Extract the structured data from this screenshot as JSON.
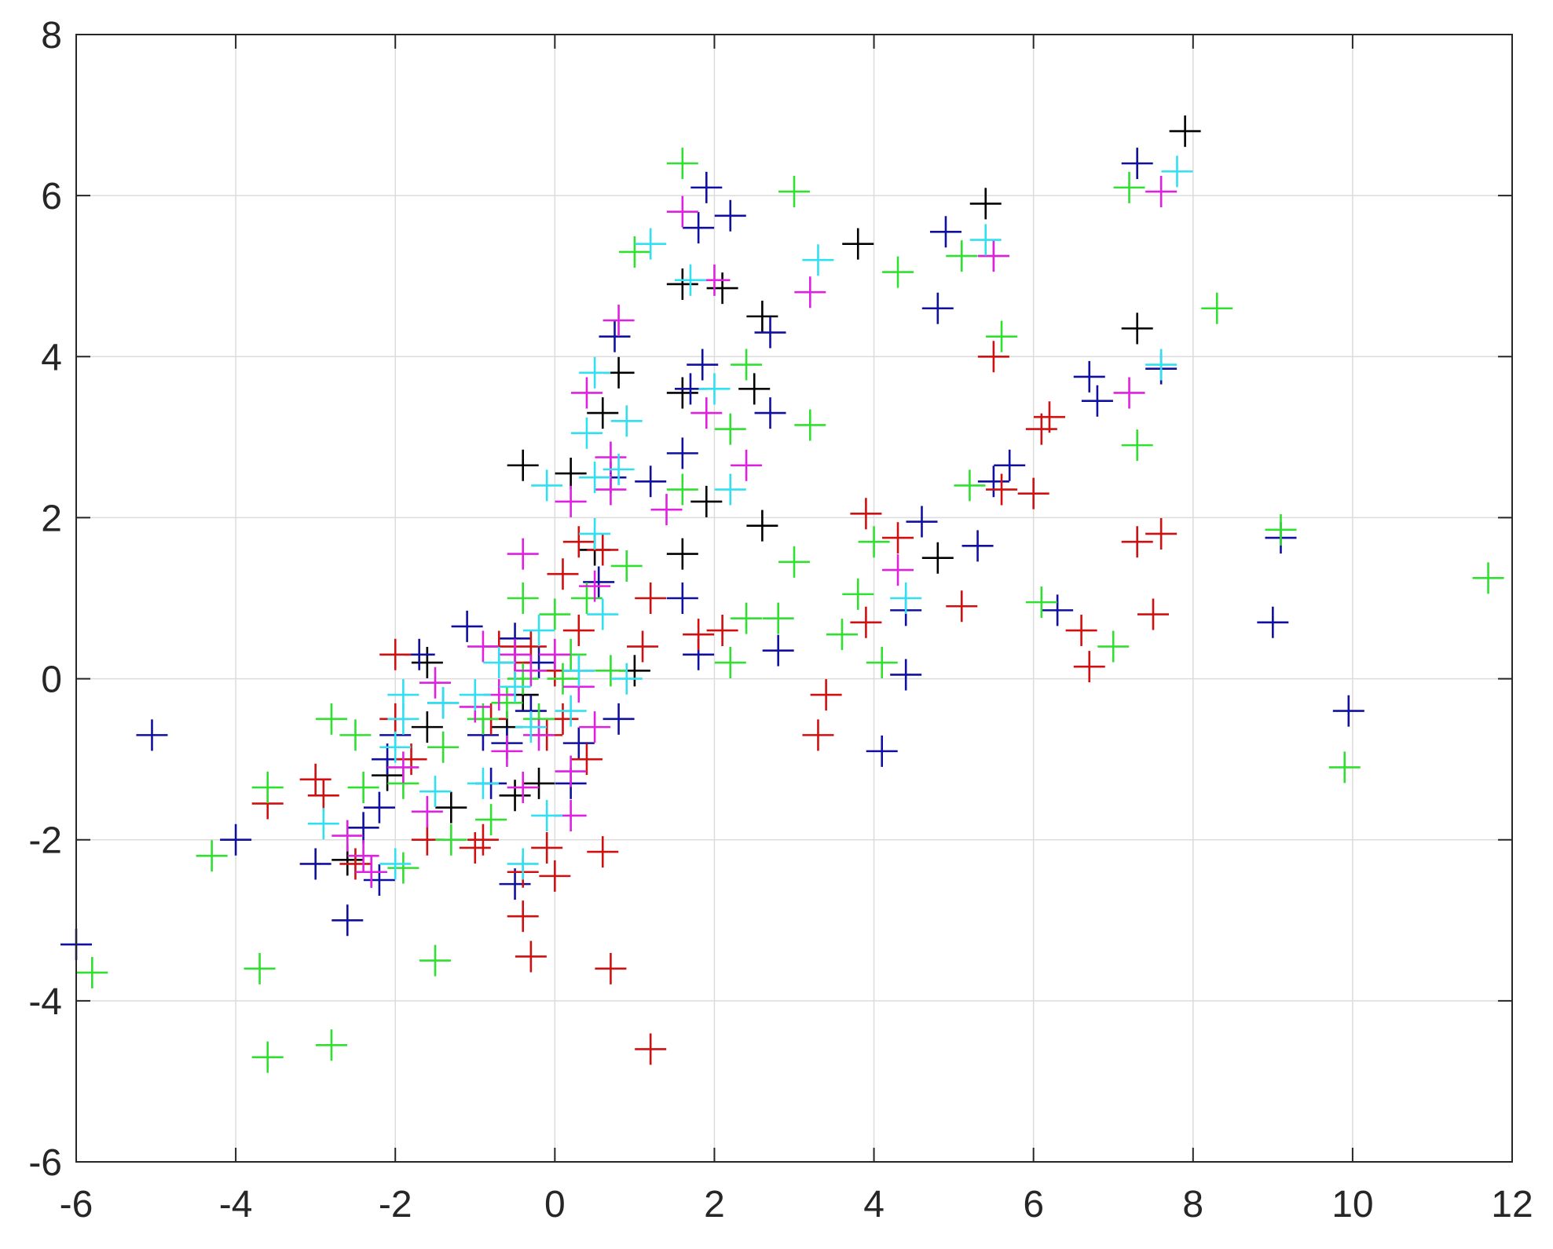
{
  "chart_data": {
    "type": "scatter",
    "title": "",
    "xlabel": "",
    "ylabel": "",
    "xlim": [
      -6,
      12
    ],
    "ylim": [
      -6,
      8
    ],
    "xticks": [
      "-6",
      "-4",
      "-2",
      "0",
      "2",
      "4",
      "6",
      "8",
      "10",
      "12"
    ],
    "yticks": [
      "-6",
      "-4",
      "-2",
      "0",
      "2",
      "4",
      "6",
      "8"
    ],
    "grid": true,
    "marker": "+",
    "colors": {
      "black": "#000000",
      "blue": "#1010a0",
      "red": "#d01010",
      "green": "#30e030",
      "magenta": "#e020e0",
      "cyan": "#30e0f0"
    },
    "series": [
      {
        "color": "black",
        "points": [
          [
            7.9,
            6.8
          ],
          [
            5.4,
            5.9
          ],
          [
            3.8,
            5.4
          ],
          [
            1.6,
            4.9
          ],
          [
            2.1,
            4.85
          ],
          [
            2.6,
            4.5
          ],
          [
            7.3,
            4.35
          ],
          [
            0.8,
            3.8
          ],
          [
            2.5,
            3.6
          ],
          [
            1.6,
            3.55
          ],
          [
            0.6,
            3.3
          ],
          [
            -0.4,
            2.65
          ],
          [
            0.2,
            2.55
          ],
          [
            1.9,
            2.2
          ],
          [
            2.6,
            1.9
          ],
          [
            1.6,
            1.55
          ],
          [
            4.8,
            1.5
          ],
          [
            0.5,
            1.6
          ],
          [
            1.0,
            0.1
          ],
          [
            -1.6,
            0.2
          ],
          [
            -0.4,
            -0.2
          ],
          [
            -0.6,
            -0.6
          ],
          [
            -1.6,
            -0.6
          ],
          [
            -0.2,
            -1.3
          ],
          [
            -1.3,
            -1.6
          ],
          [
            -0.5,
            -1.45
          ],
          [
            -2.6,
            -2.25
          ],
          [
            -2.3,
            -2.4
          ],
          [
            -2.1,
            -1.2
          ]
        ]
      },
      {
        "color": "blue",
        "points": [
          [
            7.3,
            6.4
          ],
          [
            1.9,
            6.1
          ],
          [
            2.2,
            5.75
          ],
          [
            1.8,
            5.6
          ],
          [
            4.9,
            5.55
          ],
          [
            4.8,
            4.6
          ],
          [
            2.7,
            4.3
          ],
          [
            0.75,
            4.25
          ],
          [
            1.85,
            3.9
          ],
          [
            6.7,
            3.75
          ],
          [
            7.6,
            3.85
          ],
          [
            6.8,
            3.45
          ],
          [
            1.7,
            3.6
          ],
          [
            2.7,
            3.3
          ],
          [
            1.6,
            2.8
          ],
          [
            5.7,
            2.65
          ],
          [
            5.5,
            2.45
          ],
          [
            1.2,
            2.45
          ],
          [
            0.7,
            2.5
          ],
          [
            4.6,
            1.95
          ],
          [
            5.3,
            1.65
          ],
          [
            9.1,
            1.75
          ],
          [
            1.6,
            1.0
          ],
          [
            6.3,
            0.85
          ],
          [
            4.4,
            0.85
          ],
          [
            2.8,
            0.35
          ],
          [
            1.8,
            0.3
          ],
          [
            4.4,
            0.05
          ],
          [
            9.0,
            0.7
          ],
          [
            9.95,
            -0.4
          ],
          [
            4.1,
            -0.9
          ],
          [
            -1.1,
            0.65
          ],
          [
            -1.7,
            0.3
          ],
          [
            0.55,
            1.2
          ],
          [
            -0.5,
            0.5
          ],
          [
            -0.2,
            0.2
          ],
          [
            0.3,
            0.1
          ],
          [
            0.8,
            -0.5
          ],
          [
            -0.6,
            -0.8
          ],
          [
            -0.9,
            -0.7
          ],
          [
            -1.4,
            -0.3
          ],
          [
            -2.1,
            -1.0
          ],
          [
            -2.0,
            -0.7
          ],
          [
            -2.2,
            -1.6
          ],
          [
            -2.2,
            -2.5
          ],
          [
            -2.4,
            -1.85
          ],
          [
            -3.0,
            -2.3
          ],
          [
            -4.0,
            -2.0
          ],
          [
            -5.05,
            -0.7
          ],
          [
            -6.0,
            -3.3
          ],
          [
            -2.6,
            -3.0
          ],
          [
            -0.5,
            -2.55
          ],
          [
            0.2,
            -1.3
          ],
          [
            0.3,
            -0.8
          ],
          [
            -0.8,
            -1.3
          ],
          [
            -0.3,
            -0.4
          ]
        ]
      },
      {
        "color": "red",
        "points": [
          [
            5.5,
            4.0
          ],
          [
            6.2,
            3.25
          ],
          [
            6.1,
            3.1
          ],
          [
            6.0,
            2.3
          ],
          [
            5.6,
            2.35
          ],
          [
            3.9,
            2.05
          ],
          [
            4.3,
            1.75
          ],
          [
            7.3,
            1.7
          ],
          [
            7.6,
            1.8
          ],
          [
            5.1,
            0.9
          ],
          [
            7.5,
            0.8
          ],
          [
            3.9,
            0.7
          ],
          [
            6.6,
            0.6
          ],
          [
            6.7,
            0.15
          ],
          [
            3.4,
            -0.2
          ],
          [
            3.3,
            -0.7
          ],
          [
            2.1,
            0.6
          ],
          [
            1.8,
            0.55
          ],
          [
            1.2,
            1.0
          ],
          [
            1.1,
            0.4
          ],
          [
            0.6,
            1.6
          ],
          [
            0.3,
            1.7
          ],
          [
            0.1,
            1.3
          ],
          [
            0.3,
            0.6
          ],
          [
            0.0,
            0.1
          ],
          [
            -0.3,
            0.4
          ],
          [
            -0.5,
            0.2
          ],
          [
            -0.7,
            0.4
          ],
          [
            -0.1,
            -0.7
          ],
          [
            -0.8,
            -0.5
          ],
          [
            -0.9,
            -2.0
          ],
          [
            -1.0,
            -2.1
          ],
          [
            -0.4,
            -2.4
          ],
          [
            -0.1,
            -2.1
          ],
          [
            0.0,
            -2.45
          ],
          [
            -0.4,
            -2.95
          ],
          [
            -0.3,
            -3.45
          ],
          [
            0.6,
            -2.15
          ],
          [
            0.7,
            -3.6
          ],
          [
            1.2,
            -4.6
          ],
          [
            -1.6,
            -2.0
          ],
          [
            -1.8,
            -1.0
          ],
          [
            -2.0,
            -0.5
          ],
          [
            -2.0,
            0.3
          ],
          [
            -3.0,
            -1.25
          ],
          [
            -2.9,
            -1.45
          ],
          [
            -3.6,
            -1.55
          ],
          [
            -2.5,
            -2.3
          ],
          [
            0.4,
            -1.0
          ],
          [
            0.1,
            -0.5
          ]
        ]
      },
      {
        "color": "green",
        "points": [
          [
            1.6,
            6.4
          ],
          [
            3.0,
            6.05
          ],
          [
            7.2,
            6.1
          ],
          [
            1.0,
            5.3
          ],
          [
            4.3,
            5.05
          ],
          [
            5.1,
            5.25
          ],
          [
            5.5,
            5.25
          ],
          [
            8.3,
            4.6
          ],
          [
            5.6,
            4.25
          ],
          [
            2.4,
            3.9
          ],
          [
            3.2,
            3.15
          ],
          [
            2.2,
            3.1
          ],
          [
            7.3,
            2.9
          ],
          [
            5.2,
            2.4
          ],
          [
            1.6,
            2.35
          ],
          [
            9.1,
            1.85
          ],
          [
            11.7,
            1.25
          ],
          [
            4.0,
            1.7
          ],
          [
            3.0,
            1.45
          ],
          [
            3.8,
            1.05
          ],
          [
            6.1,
            0.95
          ],
          [
            2.4,
            0.75
          ],
          [
            2.8,
            0.75
          ],
          [
            3.6,
            0.55
          ],
          [
            7.0,
            0.4
          ],
          [
            4.1,
            0.2
          ],
          [
            2.2,
            0.2
          ],
          [
            9.9,
            -1.1
          ],
          [
            0.9,
            1.4
          ],
          [
            0.4,
            1.0
          ],
          [
            -0.4,
            1.0
          ],
          [
            0.0,
            0.8
          ],
          [
            0.2,
            0.3
          ],
          [
            -0.4,
            0.0
          ],
          [
            -0.6,
            -0.3
          ],
          [
            -0.9,
            -0.5
          ],
          [
            -1.4,
            -0.85
          ],
          [
            -2.8,
            -0.5
          ],
          [
            -2.5,
            -0.7
          ],
          [
            -1.9,
            -1.3
          ],
          [
            -2.4,
            -1.35
          ],
          [
            -3.6,
            -1.35
          ],
          [
            -4.3,
            -2.2
          ],
          [
            -1.9,
            -2.35
          ],
          [
            -1.3,
            -2.0
          ],
          [
            -0.8,
            -1.75
          ],
          [
            -5.8,
            -3.65
          ],
          [
            -3.7,
            -3.6
          ],
          [
            -1.5,
            -3.5
          ],
          [
            -3.6,
            -4.7
          ],
          [
            -2.8,
            -4.55
          ],
          [
            0.7,
            0.1
          ],
          [
            -0.2,
            -0.5
          ],
          [
            0.1,
            0.0
          ]
        ]
      },
      {
        "color": "magenta",
        "points": [
          [
            1.6,
            5.8
          ],
          [
            7.6,
            6.05
          ],
          [
            2.0,
            4.95
          ],
          [
            3.2,
            4.8
          ],
          [
            5.5,
            5.25
          ],
          [
            0.8,
            4.45
          ],
          [
            0.4,
            3.55
          ],
          [
            1.9,
            3.3
          ],
          [
            7.2,
            3.55
          ],
          [
            0.7,
            2.75
          ],
          [
            2.4,
            2.65
          ],
          [
            0.7,
            2.35
          ],
          [
            0.2,
            2.2
          ],
          [
            1.4,
            2.1
          ],
          [
            4.3,
            1.35
          ],
          [
            -0.4,
            1.55
          ],
          [
            0.5,
            1.15
          ],
          [
            -0.9,
            0.4
          ],
          [
            -0.5,
            0.3
          ],
          [
            0.0,
            0.3
          ],
          [
            -0.3,
            0.1
          ],
          [
            -0.7,
            -0.2
          ],
          [
            -1.0,
            -0.35
          ],
          [
            -1.5,
            -0.05
          ],
          [
            -1.6,
            -1.65
          ],
          [
            -1.9,
            -1.1
          ],
          [
            -2.6,
            -1.95
          ],
          [
            -2.4,
            -2.2
          ],
          [
            -2.3,
            -2.4
          ],
          [
            0.2,
            -1.7
          ],
          [
            0.2,
            -1.15
          ],
          [
            -0.4,
            -1.35
          ],
          [
            0.3,
            -0.1
          ],
          [
            0.5,
            -0.6
          ],
          [
            -0.2,
            -0.7
          ],
          [
            -0.6,
            -0.9
          ]
        ]
      },
      {
        "color": "cyan",
        "points": [
          [
            7.8,
            6.3
          ],
          [
            1.2,
            5.4
          ],
          [
            1.7,
            4.95
          ],
          [
            3.3,
            5.2
          ],
          [
            5.4,
            5.45
          ],
          [
            0.5,
            3.8
          ],
          [
            2.0,
            3.6
          ],
          [
            7.6,
            3.9
          ],
          [
            0.9,
            3.2
          ],
          [
            0.4,
            3.05
          ],
          [
            2.2,
            2.35
          ],
          [
            0.5,
            2.5
          ],
          [
            0.8,
            2.6
          ],
          [
            -0.1,
            2.4
          ],
          [
            0.5,
            1.8
          ],
          [
            4.4,
            1.0
          ],
          [
            0.6,
            0.8
          ],
          [
            -0.2,
            0.6
          ],
          [
            0.3,
            0.1
          ],
          [
            -0.7,
            0.2
          ],
          [
            -0.5,
            -0.1
          ],
          [
            -1.0,
            -0.2
          ],
          [
            -1.4,
            -0.3
          ],
          [
            -1.9,
            -0.2
          ],
          [
            -1.9,
            -0.5
          ],
          [
            -1.5,
            -1.4
          ],
          [
            -0.9,
            -1.3
          ],
          [
            -2.0,
            -0.85
          ],
          [
            -2.9,
            -1.8
          ],
          [
            -2.0,
            -2.3
          ],
          [
            -0.4,
            -2.3
          ],
          [
            -0.1,
            -1.7
          ],
          [
            0.9,
            0.0
          ],
          [
            0.2,
            -0.4
          ],
          [
            -0.3,
            -0.6
          ]
        ]
      }
    ]
  }
}
